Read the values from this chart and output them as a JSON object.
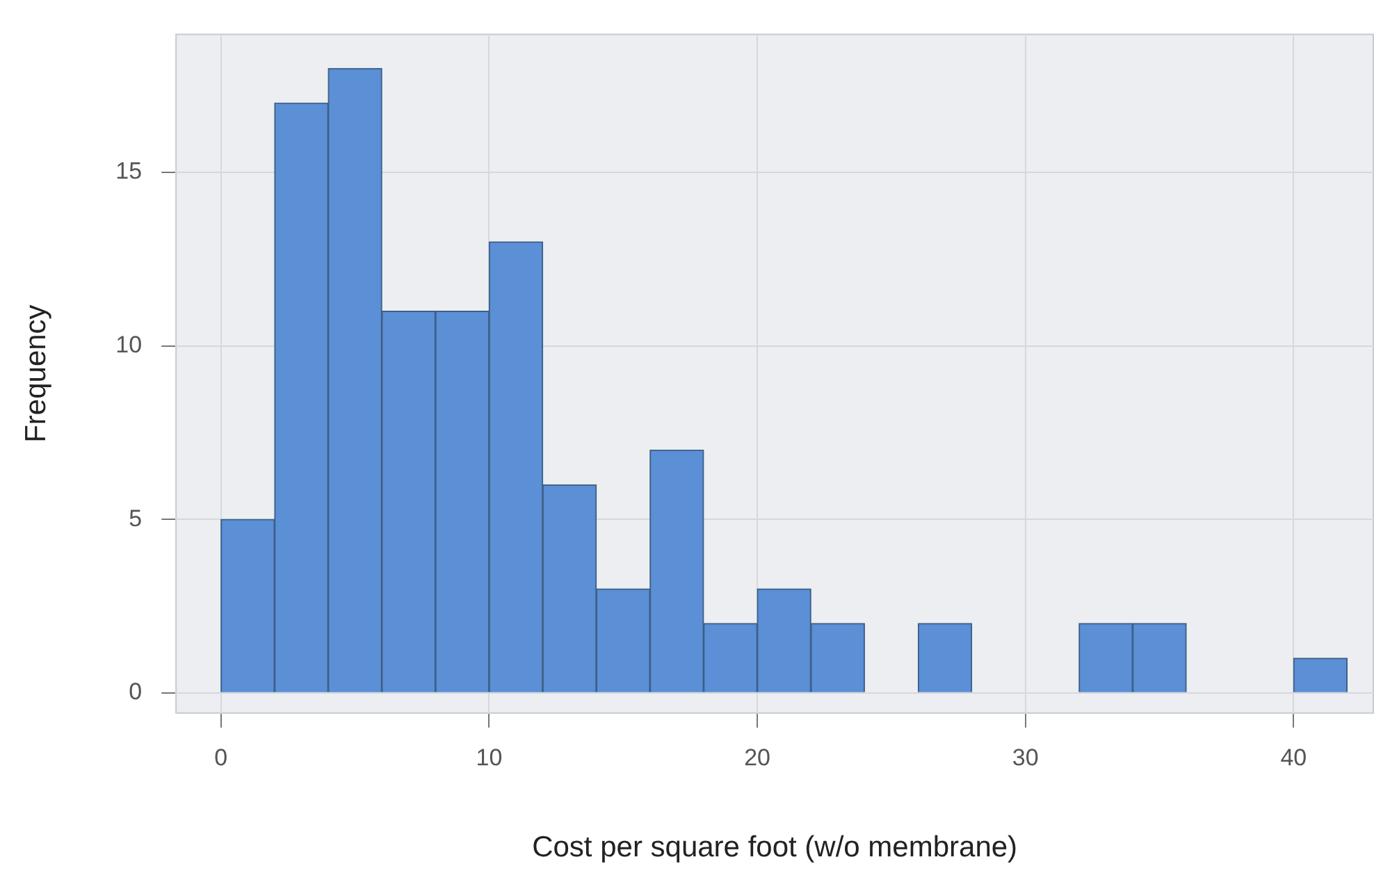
{
  "chart_data": {
    "type": "histogram",
    "xlabel": "Cost per square foot (w/o membrane)",
    "ylabel": "Frequency",
    "bins": [
      0,
      2,
      4,
      6,
      8,
      10,
      12,
      14,
      16,
      18,
      20,
      22,
      24,
      26,
      28,
      30,
      32,
      34,
      36,
      38,
      40,
      42
    ],
    "values": [
      5,
      17,
      18,
      11,
      11,
      13,
      6,
      3,
      7,
      2,
      3,
      2,
      0,
      2,
      0,
      0,
      2,
      2,
      0,
      0,
      1
    ],
    "color": "#5b8fd6",
    "xlim": [
      -1.7,
      43
    ],
    "xticks": [
      0,
      10,
      20,
      30,
      40
    ],
    "ylim": [
      -0.6,
      19
    ],
    "yticks": [
      0,
      5,
      10,
      15
    ],
    "grid": true
  }
}
